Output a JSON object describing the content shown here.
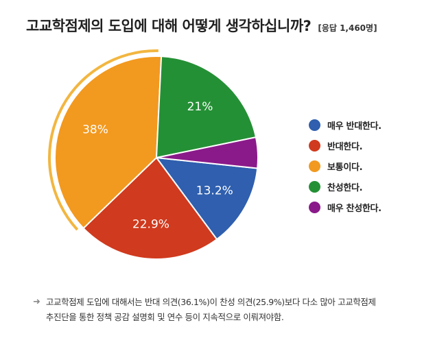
{
  "header": {
    "title": "고교학점제의 도입에 대해 어떻게 생각하십니까?",
    "subtitle": "[응답 1,460명]"
  },
  "chart_data": {
    "type": "pie",
    "title": "고교학점제의 도입에 대해 어떻게 생각하십니까?",
    "subtitle": "[응답 1,460명]",
    "legend_position": "right",
    "slices": [
      {
        "label": "매우 반대한다.",
        "value": 13.2,
        "display": "13.2%",
        "color": "#2f5fae",
        "show_label": true
      },
      {
        "label": "반대한다.",
        "value": 22.9,
        "display": "22.9%",
        "color": "#d03a1e",
        "show_label": true
      },
      {
        "label": "보통이다.",
        "value": 38,
        "display": "38%",
        "color": "#f2991f",
        "show_label": true
      },
      {
        "label": "찬성한다.",
        "value": 21,
        "display": "21%",
        "color": "#249035",
        "show_label": true
      },
      {
        "label": "매우 찬성한다.",
        "value": 4.9,
        "display": "",
        "color": "#8a1a8a",
        "show_label": false
      }
    ],
    "highlight_ring_color": "#f2b640"
  },
  "legend": {
    "items": [
      {
        "label": "매우 반대한다.",
        "color": "#2f5fae"
      },
      {
        "label": "반대한다.",
        "color": "#d03a1e"
      },
      {
        "label": "보통이다.",
        "color": "#f2991f"
      },
      {
        "label": "찬성한다.",
        "color": "#249035"
      },
      {
        "label": "매우 찬성한다.",
        "color": "#8a1a8a"
      }
    ]
  },
  "note": {
    "icon": "arrow-right-icon",
    "text_line1": "고교학점제 도입에 대해서는 반대 의견(36.1%)이 찬성 의견(25.9%)보다 다소 많아 고교학점제",
    "text_line2": "추진단을 통한 정책 공감 설명회 및 연수 등이 지속적으로 이뤄져야함."
  }
}
